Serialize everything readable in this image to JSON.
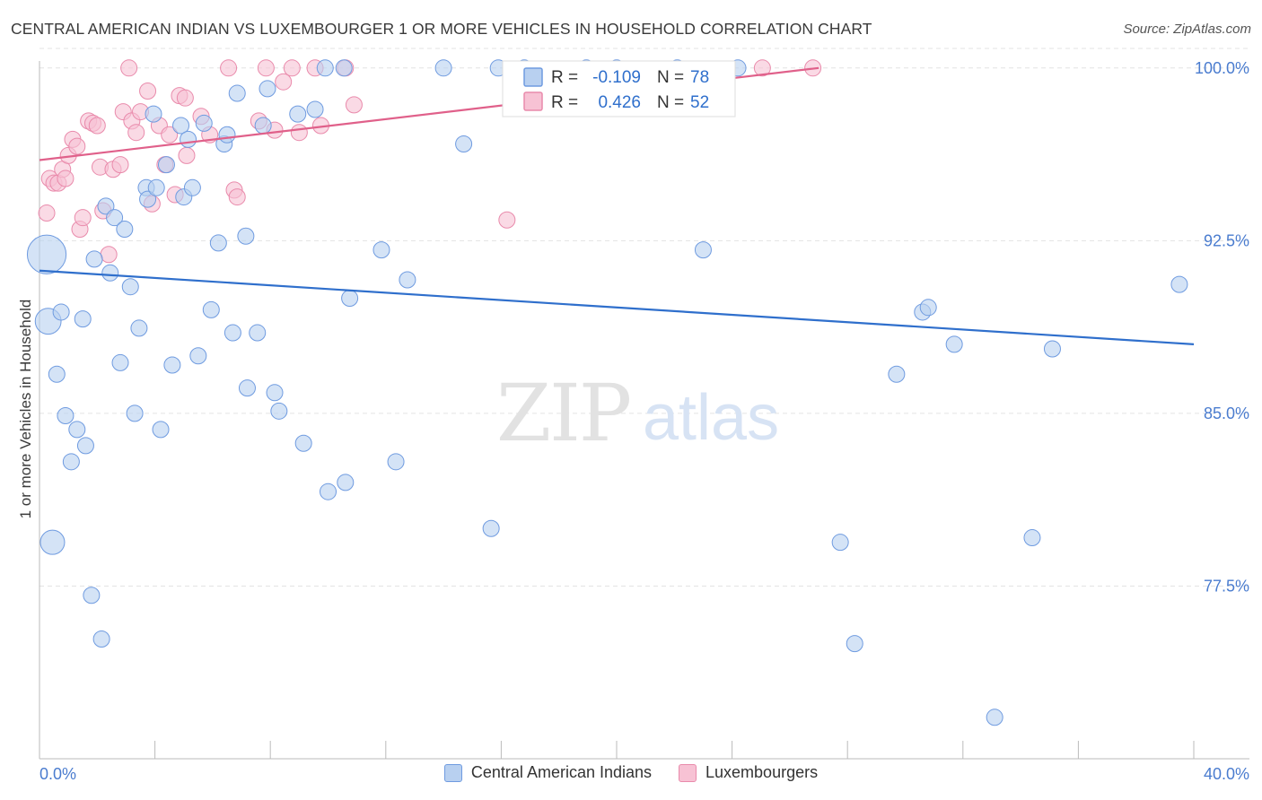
{
  "title": "CENTRAL AMERICAN INDIAN VS LUXEMBOURGER 1 OR MORE VEHICLES IN HOUSEHOLD CORRELATION CHART",
  "source": "Source: ZipAtlas.com",
  "watermark": {
    "zip": "ZIP",
    "atlas": "atlas"
  },
  "legend_top": {
    "rows": [
      {
        "r_label": "R =",
        "r_value": "-0.109",
        "n_label": "N =",
        "n_value": "78"
      },
      {
        "r_label": "R =",
        "r_value": "0.426",
        "n_label": "N =",
        "n_value": "52"
      }
    ]
  },
  "legend_bottom": [
    "Central American Indians",
    "Luxembourgers"
  ],
  "colors": {
    "blue_fill": "#b8d0f0",
    "blue_stroke": "#6f9be0",
    "blue_line": "#2f6fcc",
    "pink_fill": "#f7c2d4",
    "pink_stroke": "#e98aab",
    "pink_line": "#e0608a",
    "tick_text": "#4a7ccf",
    "grid": "#e3e3e3"
  },
  "chart_data": {
    "type": "scatter",
    "title": "CENTRAL AMERICAN INDIAN VS LUXEMBOURGER 1 OR MORE VEHICLES IN HOUSEHOLD CORRELATION CHART",
    "xlabel": "",
    "ylabel": "1 or more Vehicles in Household",
    "xlim": [
      0,
      40
    ],
    "ylim": [
      70,
      101.2
    ],
    "x_tick_labels": [
      "0.0%",
      "40.0%"
    ],
    "y_ticks": [
      77.5,
      85.0,
      92.5,
      100.0
    ],
    "y_tick_labels": [
      "77.5%",
      "85.0%",
      "92.5%",
      "100.0%"
    ],
    "grid": true,
    "legend_position": "bottom",
    "series": [
      {
        "name": "Central American Indians",
        "r": -0.109,
        "n": 78,
        "trend": {
          "x": [
            0,
            40
          ],
          "y": [
            91.2,
            88.0
          ]
        },
        "points": [
          [
            0.25,
            91.9,
            2.4
          ],
          [
            0.3,
            89.0,
            1.6
          ],
          [
            0.45,
            79.4,
            1.5
          ],
          [
            0.6,
            86.7,
            1
          ],
          [
            0.75,
            89.4,
            1
          ],
          [
            0.9,
            84.9,
            1
          ],
          [
            1.1,
            82.9,
            1
          ],
          [
            1.3,
            84.3,
            1
          ],
          [
            1.5,
            89.1,
            1
          ],
          [
            1.6,
            83.6,
            1
          ],
          [
            1.8,
            77.1,
            1
          ],
          [
            1.9,
            91.7,
            1
          ],
          [
            2.15,
            75.2,
            1
          ],
          [
            2.3,
            94.0,
            1
          ],
          [
            2.45,
            91.1,
            1
          ],
          [
            2.6,
            93.5,
            1
          ],
          [
            2.8,
            87.2,
            1
          ],
          [
            2.95,
            93.0,
            1
          ],
          [
            3.15,
            90.5,
            1
          ],
          [
            3.3,
            85.0,
            1
          ],
          [
            3.45,
            88.7,
            1
          ],
          [
            3.7,
            94.8,
            1
          ],
          [
            3.75,
            94.3,
            1
          ],
          [
            3.95,
            98.0,
            1
          ],
          [
            4.05,
            94.8,
            1
          ],
          [
            4.2,
            84.3,
            1
          ],
          [
            4.4,
            95.8,
            1
          ],
          [
            4.6,
            87.1,
            1
          ],
          [
            4.9,
            97.5,
            1
          ],
          [
            5.0,
            94.4,
            1
          ],
          [
            5.15,
            96.9,
            1
          ],
          [
            5.3,
            94.8,
            1
          ],
          [
            5.5,
            87.5,
            1
          ],
          [
            5.7,
            97.6,
            1
          ],
          [
            5.95,
            89.5,
            1
          ],
          [
            6.2,
            92.4,
            1
          ],
          [
            6.4,
            96.7,
            1
          ],
          [
            6.5,
            97.1,
            1
          ],
          [
            6.7,
            88.5,
            1
          ],
          [
            6.85,
            98.9,
            1
          ],
          [
            7.2,
            86.1,
            1
          ],
          [
            7.15,
            92.7,
            1
          ],
          [
            7.55,
            88.5,
            1
          ],
          [
            7.75,
            97.5,
            1
          ],
          [
            7.9,
            99.1,
            1
          ],
          [
            8.15,
            85.9,
            1
          ],
          [
            8.3,
            85.1,
            1
          ],
          [
            8.95,
            98.0,
            1
          ],
          [
            9.15,
            83.7,
            1
          ],
          [
            9.55,
            98.2,
            1
          ],
          [
            9.9,
            100.0,
            1
          ],
          [
            10.0,
            81.6,
            1
          ],
          [
            10.55,
            100.0,
            1
          ],
          [
            10.6,
            82.0,
            1
          ],
          [
            10.75,
            90.0,
            1
          ],
          [
            11.85,
            92.1,
            1
          ],
          [
            12.35,
            82.9,
            1
          ],
          [
            12.75,
            90.8,
            1
          ],
          [
            14.0,
            100.0,
            1
          ],
          [
            14.7,
            96.7,
            1
          ],
          [
            15.65,
            80.0,
            1
          ],
          [
            15.9,
            100.0,
            1
          ],
          [
            16.8,
            100.0,
            1
          ],
          [
            18.95,
            100.0,
            1
          ],
          [
            20.0,
            100.0,
            1
          ],
          [
            22.1,
            100.0,
            1
          ],
          [
            23.0,
            92.1,
            1
          ],
          [
            27.75,
            79.4,
            1
          ],
          [
            28.25,
            75.0,
            1
          ],
          [
            29.7,
            86.7,
            1
          ],
          [
            30.6,
            89.4,
            1
          ],
          [
            30.8,
            89.6,
            1
          ],
          [
            31.7,
            88.0,
            1
          ],
          [
            33.1,
            71.8,
            1
          ],
          [
            34.4,
            79.6,
            1
          ],
          [
            35.1,
            87.8,
            1
          ],
          [
            39.5,
            90.6,
            1
          ],
          [
            24.2,
            100.0,
            1
          ]
        ]
      },
      {
        "name": "Luxembourgers",
        "r": 0.426,
        "n": 52,
        "trend": {
          "x": [
            0,
            27.0
          ],
          "y": [
            96.0,
            100.0
          ]
        },
        "points": [
          [
            0.25,
            93.7,
            1
          ],
          [
            0.35,
            95.2,
            1
          ],
          [
            0.5,
            95.0,
            1
          ],
          [
            0.65,
            95.0,
            1
          ],
          [
            0.8,
            95.6,
            1
          ],
          [
            0.9,
            95.2,
            1
          ],
          [
            1.0,
            96.2,
            1
          ],
          [
            1.15,
            96.9,
            1
          ],
          [
            1.3,
            96.6,
            1
          ],
          [
            1.4,
            93.0,
            1
          ],
          [
            1.5,
            93.5,
            1
          ],
          [
            1.7,
            97.7,
            1
          ],
          [
            1.85,
            97.6,
            1
          ],
          [
            2.0,
            97.5,
            1
          ],
          [
            2.1,
            95.7,
            1
          ],
          [
            2.2,
            93.8,
            1
          ],
          [
            2.4,
            91.9,
            1
          ],
          [
            2.55,
            95.6,
            1
          ],
          [
            2.8,
            95.8,
            1
          ],
          [
            2.9,
            98.1,
            1
          ],
          [
            3.1,
            100.0,
            1
          ],
          [
            3.2,
            97.7,
            1
          ],
          [
            3.35,
            97.2,
            1
          ],
          [
            3.5,
            98.1,
            1
          ],
          [
            3.75,
            99.0,
            1
          ],
          [
            3.9,
            94.1,
            1
          ],
          [
            4.15,
            97.5,
            1
          ],
          [
            4.35,
            95.8,
            1
          ],
          [
            4.5,
            97.1,
            1
          ],
          [
            4.7,
            94.5,
            1
          ],
          [
            4.85,
            98.8,
            1
          ],
          [
            5.05,
            98.7,
            1
          ],
          [
            5.1,
            96.2,
            1
          ],
          [
            5.6,
            97.9,
            1
          ],
          [
            5.9,
            97.1,
            1
          ],
          [
            6.55,
            100.0,
            1
          ],
          [
            6.75,
            94.7,
            1
          ],
          [
            6.85,
            94.4,
            1
          ],
          [
            7.6,
            97.7,
            1
          ],
          [
            7.85,
            100.0,
            1
          ],
          [
            8.15,
            97.3,
            1
          ],
          [
            8.45,
            99.4,
            1
          ],
          [
            8.75,
            100.0,
            1
          ],
          [
            9.0,
            97.2,
            1
          ],
          [
            9.55,
            100.0,
            1
          ],
          [
            9.75,
            97.5,
            1
          ],
          [
            10.6,
            100.0,
            1
          ],
          [
            10.9,
            98.4,
            1
          ],
          [
            16.2,
            93.4,
            1
          ],
          [
            23.75,
            99.4,
            1
          ],
          [
            25.05,
            100.0,
            1
          ],
          [
            26.8,
            100.0,
            1
          ]
        ]
      }
    ]
  }
}
